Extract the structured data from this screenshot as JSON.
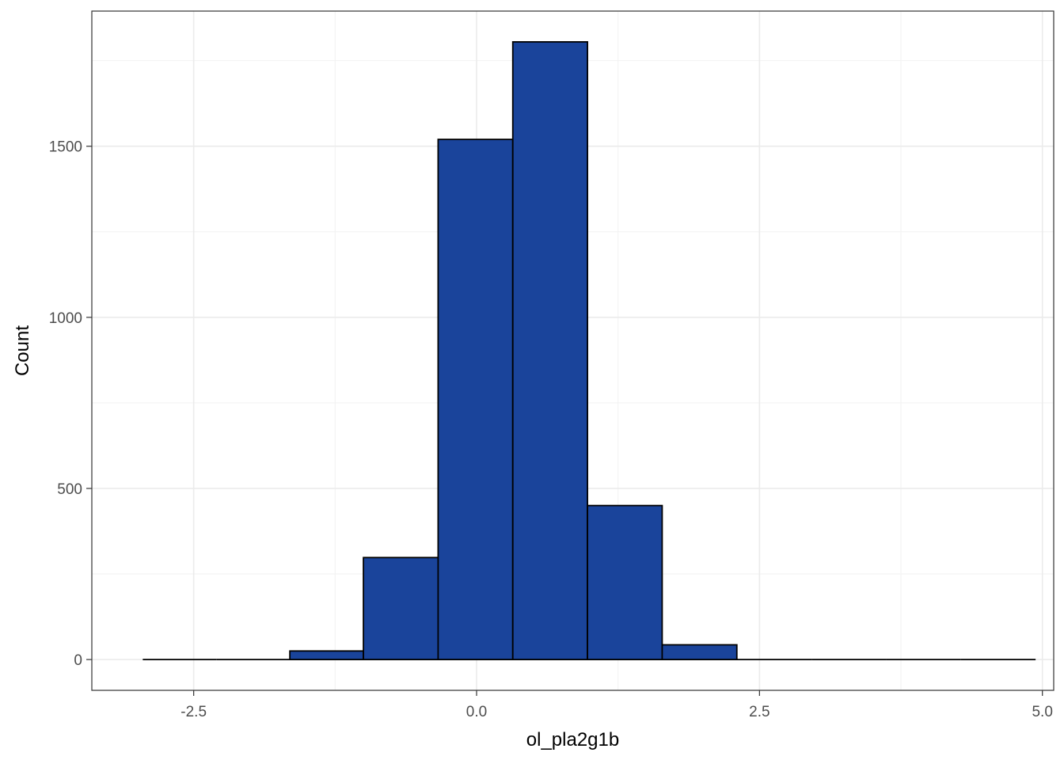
{
  "chart_data": {
    "type": "bar",
    "subtype": "histogram",
    "title": "",
    "xlabel": "ol_pla2g1b",
    "ylabel": "Count",
    "xlim": [
      -3.4,
      5.1
    ],
    "ylim": [
      -90,
      1895
    ],
    "x_ticks": [
      -2.5,
      0.0,
      2.5,
      5.0
    ],
    "x_tick_labels": [
      "-2.5",
      "0.0",
      "2.5",
      "5.0"
    ],
    "y_ticks": [
      0,
      500,
      1000,
      1500
    ],
    "y_tick_labels": [
      "0",
      "500",
      "1000",
      "1500"
    ],
    "bins": [
      {
        "x0": -2.95,
        "x1": -2.3,
        "count": 0
      },
      {
        "x0": -2.3,
        "x1": -1.65,
        "count": 0
      },
      {
        "x0": -1.65,
        "x1": -1.0,
        "count": 25
      },
      {
        "x0": -1.0,
        "x1": -0.34,
        "count": 298
      },
      {
        "x0": -0.34,
        "x1": 0.32,
        "count": 1520
      },
      {
        "x0": 0.32,
        "x1": 0.98,
        "count": 1805
      },
      {
        "x0": 0.98,
        "x1": 1.64,
        "count": 450
      },
      {
        "x0": 1.64,
        "x1": 2.3,
        "count": 43
      },
      {
        "x0": 2.3,
        "x1": 2.96,
        "count": 0
      },
      {
        "x0": 2.96,
        "x1": 3.62,
        "count": 0
      },
      {
        "x0": 3.62,
        "x1": 4.28,
        "count": 0
      },
      {
        "x0": 4.28,
        "x1": 4.94,
        "count": 0
      }
    ],
    "bar_fill": "#1a449b",
    "bar_stroke": "#000000",
    "grid": true,
    "panel_border": true
  }
}
